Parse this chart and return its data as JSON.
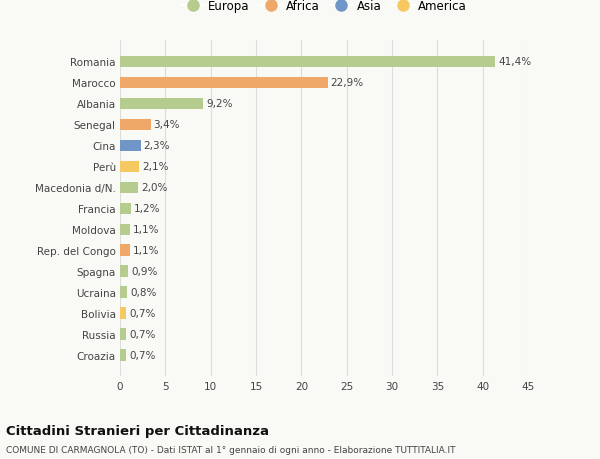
{
  "categories": [
    "Croazia",
    "Russia",
    "Bolivia",
    "Ucraina",
    "Spagna",
    "Rep. del Congo",
    "Moldova",
    "Francia",
    "Macedonia d/N.",
    "Perù",
    "Cina",
    "Senegal",
    "Albania",
    "Marocco",
    "Romania"
  ],
  "values": [
    0.7,
    0.7,
    0.7,
    0.8,
    0.9,
    1.1,
    1.1,
    1.2,
    2.0,
    2.1,
    2.3,
    3.4,
    9.2,
    22.9,
    41.4
  ],
  "labels": [
    "0,7%",
    "0,7%",
    "0,7%",
    "0,8%",
    "0,9%",
    "1,1%",
    "1,1%",
    "1,2%",
    "2,0%",
    "2,1%",
    "2,3%",
    "3,4%",
    "9,2%",
    "22,9%",
    "41,4%"
  ],
  "colors": [
    "#b5cc8e",
    "#b5cc8e",
    "#f5c862",
    "#b5cc8e",
    "#b5cc8e",
    "#f0a868",
    "#b5cc8e",
    "#b5cc8e",
    "#b5cc8e",
    "#f5c862",
    "#7096c8",
    "#f0a868",
    "#b5cc8e",
    "#f0a868",
    "#b5cc8e"
  ],
  "legend": [
    {
      "label": "Europa",
      "color": "#b5cc8e"
    },
    {
      "label": "Africa",
      "color": "#f0a868"
    },
    {
      "label": "Asia",
      "color": "#7096c8"
    },
    {
      "label": "America",
      "color": "#f5c862"
    }
  ],
  "xlim": [
    0,
    45
  ],
  "xticks": [
    0,
    5,
    10,
    15,
    20,
    25,
    30,
    35,
    40,
    45
  ],
  "title": "Cittadini Stranieri per Cittadinanza",
  "subtitle": "COMUNE DI CARMAGNOLA (TO) - Dati ISTAT al 1° gennaio di ogni anno - Elaborazione TUTTITALIA.IT",
  "bg_color": "#f9f9f6",
  "plot_bg_color": "#f9f9f6",
  "grid_color": "#dddddd",
  "text_color": "#444444",
  "bar_height": 0.55
}
